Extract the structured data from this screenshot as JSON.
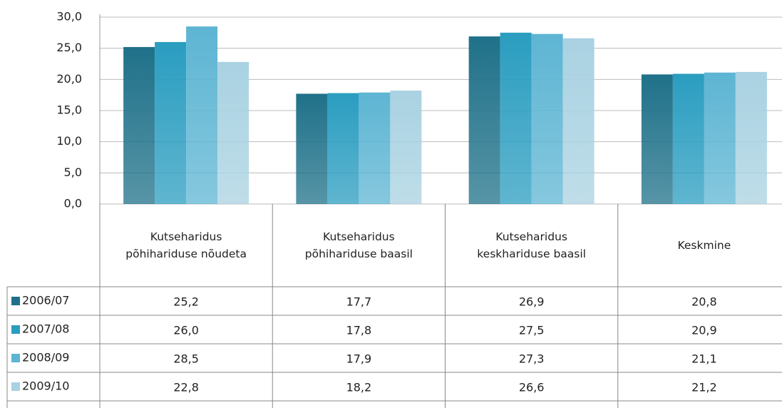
{
  "chart_data": {
    "type": "bar",
    "categories": [
      "Kutseharidus põhihariduse nõudeta",
      "Kutseharidus põhihariduse baasil",
      "Kutseharidus keskhariduse baasil",
      "Keskmine"
    ],
    "series": [
      {
        "name": "2006/07",
        "color": "#1f7189",
        "values": [
          25.2,
          17.7,
          26.9,
          20.8
        ],
        "value_labels": [
          "25,2",
          "17,7",
          "26,9",
          "20,8"
        ]
      },
      {
        "name": "2007/08",
        "color": "#2a9dc0",
        "values": [
          26.0,
          17.8,
          27.5,
          20.9
        ],
        "value_labels": [
          "26,0",
          "17,8",
          "27,5",
          "20,9"
        ]
      },
      {
        "name": "2008/09",
        "color": "#5db5d3",
        "values": [
          28.5,
          17.9,
          27.3,
          21.1
        ],
        "value_labels": [
          "28,5",
          "17,9",
          "27,3",
          "21,1"
        ]
      },
      {
        "name": "2009/10",
        "color": "#a9d2e2",
        "values": [
          22.8,
          18.2,
          26.6,
          21.2
        ],
        "value_labels": [
          "22,8",
          "18,2",
          "26,6",
          "21,2"
        ]
      }
    ],
    "ylim": [
      0,
      30
    ],
    "yticks": [
      {
        "value": 0,
        "label": "0,0"
      },
      {
        "value": 5,
        "label": "5,0"
      },
      {
        "value": 10,
        "label": "10,0"
      },
      {
        "value": 15,
        "label": "15,0"
      },
      {
        "value": 20,
        "label": "20,0"
      },
      {
        "value": 25,
        "label": "25,0"
      },
      {
        "value": 30,
        "label": "30,0"
      }
    ],
    "grid": true
  }
}
